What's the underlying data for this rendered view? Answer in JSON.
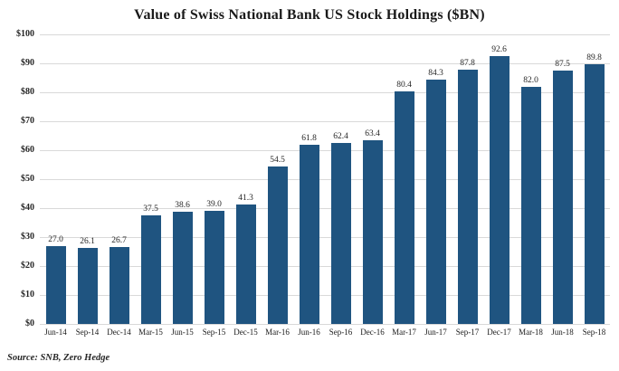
{
  "chart_data": {
    "type": "bar",
    "title": "Value of Swiss National Bank US Stock Holdings ($BN)",
    "categories": [
      "Jun-14",
      "Sep-14",
      "Dec-14",
      "Mar-15",
      "Jun-15",
      "Sep-15",
      "Dec-15",
      "Mar-16",
      "Jun-16",
      "Sep-16",
      "Dec-16",
      "Mar-17",
      "Jun-17",
      "Sep-17",
      "Dec-17",
      "Mar-18",
      "Jun-18",
      "Sep-18"
    ],
    "values": [
      27.0,
      26.1,
      26.7,
      37.5,
      38.6,
      39.0,
      41.3,
      54.5,
      61.8,
      62.4,
      63.4,
      80.4,
      84.3,
      87.8,
      92.6,
      82.0,
      87.5,
      89.8
    ],
    "value_labels": [
      "27.0",
      "26.1",
      "26.7",
      "37.5",
      "38.6",
      "39.0",
      "41.3",
      "54.5",
      "61.8",
      "62.4",
      "63.4",
      "80.4",
      "84.3",
      "87.8",
      "92.6",
      "82.0",
      "87.5",
      "89.8"
    ],
    "y_ticks": [
      "$100",
      "$90",
      "$80",
      "$70",
      "$60",
      "$50",
      "$40",
      "$30",
      "$20",
      "$10",
      "$0"
    ],
    "ylim": [
      0,
      100
    ],
    "grid": true,
    "legend": "none",
    "bar_color": "#1F5480",
    "gridline_color": "#d9d9d9",
    "xlabel": "",
    "ylabel": ""
  },
  "source": "Source: SNB, Zero Hedge"
}
